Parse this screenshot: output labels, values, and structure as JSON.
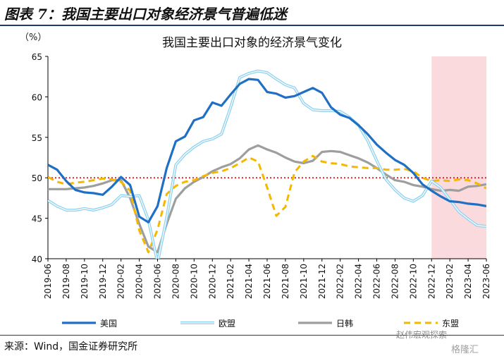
{
  "figure_title": "图表 7：我国主要出口对象经济景气普遍低迷",
  "source_note": "来源：Wind，国金证券研究所",
  "watermark": "赵伟宏观探索",
  "watermark2": "格隆汇",
  "colors": {
    "美国": "#1f6fc5",
    "欧盟": "#8fd3f0",
    "日韩": "#9e9e9e",
    "东盟": "#f5b800",
    "reference_line": "#d62728",
    "shade": "#fadadd"
  },
  "chart_data": {
    "type": "line",
    "title": "我国主要出口对象的经济景气变化",
    "ylabel": "（%）",
    "ylim": [
      40,
      65
    ],
    "yticks": [
      40,
      45,
      50,
      55,
      60,
      65
    ],
    "x_start": "2019-06",
    "x_end": "2023-06",
    "xtick_labels": [
      "2019-06",
      "2019-08",
      "2019-10",
      "2019-12",
      "2020-02",
      "2020-04",
      "2020-06",
      "2020-08",
      "2020-10",
      "2020-12",
      "2021-02",
      "2021-04",
      "2021-06",
      "2021-08",
      "2021-10",
      "2021-12",
      "2022-02",
      "2022-04",
      "2022-06",
      "2022-08",
      "2022-10",
      "2022-12",
      "2023-02",
      "2023-04",
      "2023-06"
    ],
    "shaded_range": [
      "2022-12",
      "2023-06"
    ],
    "reference_line": 50,
    "legend_position": "bottom",
    "series": [
      {
        "name": "美国",
        "style": "solid-thick",
        "values": [
          51.6,
          51.0,
          49.6,
          48.5,
          48.2,
          48.1,
          47.9,
          48.9,
          50.1,
          49.1,
          45.2,
          44.5,
          46.5,
          51.2,
          54.5,
          55.1,
          57.1,
          57.5,
          59.3,
          58.9,
          60.3,
          61.6,
          62.2,
          62.1,
          60.6,
          60.4,
          59.9,
          60.1,
          60.6,
          61.1,
          60.5,
          58.7,
          57.8,
          57.4,
          56.5,
          55.4,
          54.1,
          53.1,
          52.2,
          51.6,
          50.6,
          49.2,
          48.4,
          47.7,
          47.1,
          47.0,
          46.8,
          46.7,
          46.5
        ]
      },
      {
        "name": "欧盟",
        "style": "solid-double-light",
        "values": [
          47.2,
          46.5,
          46.0,
          46.0,
          46.2,
          46.0,
          46.3,
          46.7,
          47.8,
          47.7,
          47.8,
          44.8,
          39.5,
          45.1,
          51.6,
          52.9,
          53.8,
          54.5,
          54.8,
          55.4,
          58.7,
          62.4,
          62.9,
          63.2,
          63.0,
          62.2,
          61.5,
          61.1,
          59.2,
          58.4,
          58.3,
          58.3,
          58.2,
          57.5,
          56.5,
          54.6,
          52.1,
          49.8,
          48.5,
          47.5,
          47.1,
          47.8,
          49.6,
          48.8,
          47.3,
          45.8,
          44.9,
          44.1,
          44.0
        ]
      },
      {
        "name": "日韩",
        "style": "solid-thick",
        "values": [
          48.6,
          48.6,
          48.6,
          48.7,
          48.8,
          49.0,
          49.3,
          49.7,
          49.7,
          47.5,
          44.3,
          41.5,
          40.8,
          44.3,
          47.4,
          48.7,
          49.5,
          50.1,
          50.8,
          51.3,
          51.7,
          52.4,
          53.5,
          54.0,
          53.5,
          53.1,
          52.5,
          52.0,
          51.8,
          52.1,
          53.2,
          53.3,
          53.2,
          52.8,
          52.4,
          51.9,
          51.2,
          50.4,
          49.7,
          49.5,
          49.1,
          48.9,
          48.6,
          48.4,
          48.5,
          48.4,
          48.9,
          49.0,
          49.2
        ]
      },
      {
        "name": "东盟",
        "style": "dashed",
        "values": [
          50.1,
          49.5,
          49.2,
          49.4,
          49.5,
          49.7,
          49.9,
          49.8,
          49.5,
          48.4,
          43.5,
          40.8,
          43.6,
          48.0,
          49.0,
          49.5,
          49.7,
          50.2,
          50.6,
          50.8,
          51.2,
          51.8,
          52.5,
          52.0,
          48.8,
          45.3,
          46.4,
          50.7,
          52.0,
          52.7,
          52.0,
          51.8,
          51.7,
          51.4,
          51.3,
          51.2,
          51.2,
          51.0,
          51.0,
          51.1,
          50.8,
          50.0,
          49.6,
          49.7,
          49.6,
          49.8,
          49.7,
          49.3,
          48.7
        ]
      }
    ]
  }
}
